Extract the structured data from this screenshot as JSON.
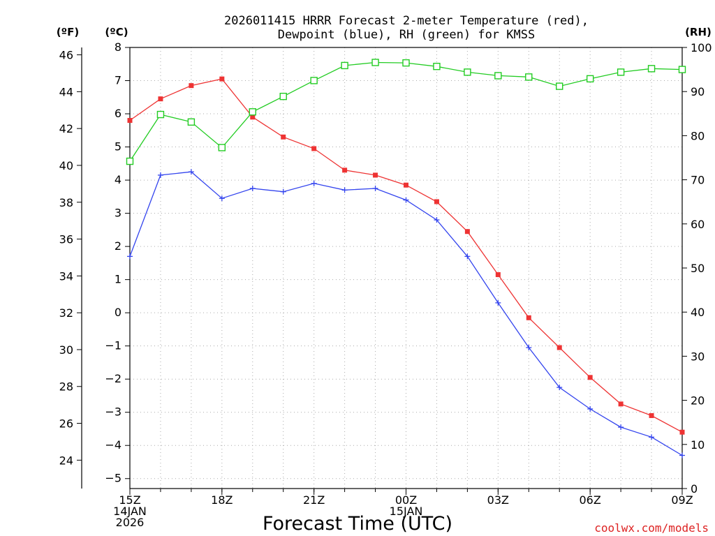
{
  "chart_data": {
    "type": "line",
    "title_line1": "2026011415 HRRR Forecast 2-meter Temperature (red),",
    "title_line2": "Dewpoint (blue), RH (green) for KMSS",
    "xlabel": "Forecast Time (UTC)",
    "watermark": "coolwx.com/models",
    "unit_labels": {
      "fahrenheit": "(ºF)",
      "celsius": "(ºC)",
      "rh": "(RH)"
    },
    "x_hours": [
      0,
      1,
      2,
      3,
      4,
      5,
      6,
      7,
      8,
      9,
      10,
      11,
      12,
      13,
      14,
      15,
      16,
      17,
      18
    ],
    "x_ticks": [
      {
        "hour": 0,
        "lines": [
          "15Z",
          "14JAN",
          "2026"
        ]
      },
      {
        "hour": 3,
        "lines": [
          "18Z"
        ]
      },
      {
        "hour": 6,
        "lines": [
          "21Z"
        ]
      },
      {
        "hour": 9,
        "lines": [
          "00Z",
          "15JAN"
        ]
      },
      {
        "hour": 12,
        "lines": [
          "03Z"
        ]
      },
      {
        "hour": 15,
        "lines": [
          "06Z"
        ]
      },
      {
        "hour": 18,
        "lines": [
          "09Z"
        ]
      }
    ],
    "celsius_axis": {
      "range": [
        -5.3,
        8.0
      ],
      "ticks": [
        8,
        7,
        6,
        5,
        4,
        3,
        2,
        1,
        0,
        -1,
        -2,
        -3,
        -4,
        -5
      ]
    },
    "fahrenheit_ticks": [
      46,
      44,
      42,
      40,
      38,
      36,
      34,
      32,
      30,
      28,
      26,
      24
    ],
    "rh_axis": {
      "range": [
        0,
        100
      ],
      "ticks": [
        100,
        90,
        80,
        70,
        60,
        50,
        40,
        30,
        20,
        10,
        0
      ]
    },
    "series": [
      {
        "name": "Temperature",
        "axis": "celsius",
        "color": "#ee3333",
        "marker": "filled-square",
        "values": [
          5.8,
          6.45,
          6.85,
          7.05,
          5.9,
          5.3,
          4.95,
          4.3,
          4.15,
          3.85,
          3.35,
          2.45,
          1.15,
          -0.15,
          -1.05,
          -1.95,
          -2.75,
          -3.1,
          -3.6
        ]
      },
      {
        "name": "Dewpoint",
        "axis": "celsius",
        "color": "#3344ee",
        "marker": "plus",
        "values": [
          1.7,
          4.15,
          4.25,
          3.45,
          3.75,
          3.65,
          3.9,
          3.7,
          3.75,
          3.4,
          2.8,
          1.7,
          0.3,
          -1.05,
          -2.25,
          -2.9,
          -3.45,
          -3.75,
          -4.3
        ]
      },
      {
        "name": "RH",
        "axis": "rh",
        "color": "#22cc22",
        "marker": "open-square",
        "values": [
          74.2,
          84.8,
          83.1,
          77.3,
          85.4,
          88.9,
          92.5,
          95.9,
          96.6,
          96.5,
          95.7,
          94.4,
          93.6,
          93.3,
          91.2,
          92.9,
          94.4,
          95.2,
          95.0
        ]
      }
    ]
  }
}
